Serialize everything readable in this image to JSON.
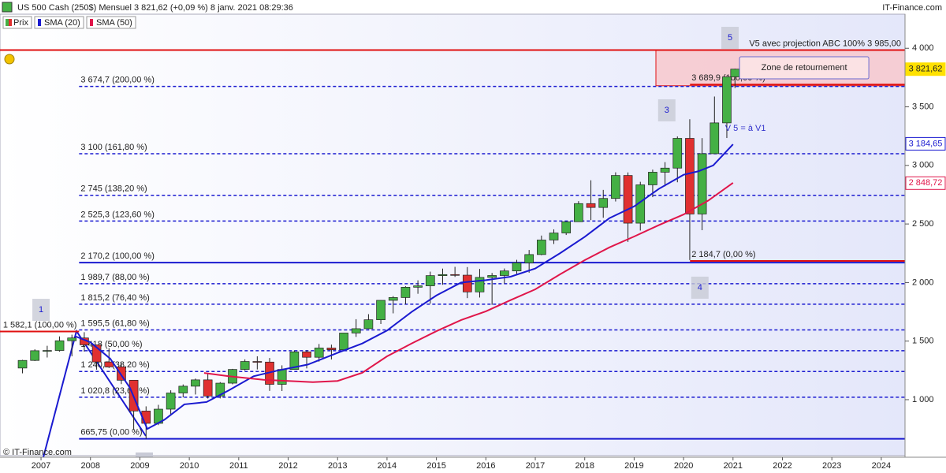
{
  "chart_data": {
    "type": "candlestick",
    "title": "US 500 Cash (250$) Mensuel 3 821,62 (+0,09 %) 8 janv. 2021 08:29:36",
    "source": "IT-Finance.com",
    "credit": "© IT-Finance.com",
    "price_name": "Prix",
    "up_color": "#44b044",
    "down_color": "#e03030",
    "x": [
      2006.625,
      2006.875,
      2007.125,
      2007.375,
      2007.625,
      2007.875,
      2008.125,
      2008.375,
      2008.625,
      2008.875,
      2009.125,
      2009.375,
      2009.625,
      2009.875,
      2010.125,
      2010.375,
      2010.625,
      2010.875,
      2011.125,
      2011.375,
      2011.625,
      2011.875,
      2012.125,
      2012.375,
      2012.625,
      2012.875,
      2013.125,
      2013.375,
      2013.625,
      2013.875,
      2014.125,
      2014.375,
      2014.625,
      2014.875,
      2015.125,
      2015.375,
      2015.625,
      2015.875,
      2016.125,
      2016.375,
      2016.625,
      2016.875,
      2017.125,
      2017.375,
      2017.625,
      2017.875,
      2018.125,
      2018.375,
      2018.625,
      2018.875,
      2019.125,
      2019.375,
      2019.625,
      2019.875,
      2020.125,
      2020.375,
      2020.625,
      2020.875,
      2021.04
    ],
    "open": [
      1270,
      1335,
      1418,
      1420,
      1503,
      1527,
      1468,
      1322,
      1280,
      1166,
      903,
      798,
      919,
      1057,
      1115,
      1169,
      1031,
      1141,
      1258,
      1326,
      1321,
      1131,
      1258,
      1408,
      1362,
      1441,
      1426,
      1569,
      1606,
      1682,
      1848,
      1872,
      1960,
      1972,
      2059,
      2068,
      2063,
      1920,
      2044,
      2060,
      2099,
      2168,
      2239,
      2363,
      2423,
      2519,
      2674,
      2641,
      2718,
      2914,
      2507,
      2834,
      2942,
      2977,
      3231,
      2585,
      3100,
      3363,
      3756
    ],
    "high": [
      1340,
      1430,
      1460,
      1540,
      1555,
      1576,
      1470,
      1440,
      1313,
      1167,
      943,
      956,
      1080,
      1130,
      1180,
      1220,
      1150,
      1263,
      1344,
      1370,
      1356,
      1293,
      1420,
      1422,
      1475,
      1470,
      1570,
      1687,
      1730,
      1849,
      1884,
      1968,
      2019,
      2093,
      2119,
      2134,
      2132,
      2116,
      2082,
      2120,
      2194,
      2278,
      2401,
      2454,
      2519,
      2695,
      2873,
      2791,
      2941,
      2940,
      2860,
      2964,
      3028,
      3247,
      3394,
      3233,
      3588,
      3760,
      3826
    ],
    "low": [
      1225,
      1330,
      1360,
      1410,
      1370,
      1410,
      1256,
      1270,
      1133,
      741,
      666,
      783,
      869,
      1020,
      1044,
      1010,
      1011,
      1131,
      1249,
      1258,
      1075,
      1074,
      1258,
      1267,
      1325,
      1343,
      1426,
      1536,
      1604,
      1646,
      1737,
      1814,
      1904,
      1820,
      1981,
      2048,
      1867,
      1872,
      1810,
      1992,
      2074,
      2084,
      2233,
      2329,
      2406,
      2520,
      2533,
      2553,
      2692,
      2347,
      2444,
      2729,
      2822,
      2856,
      2192,
      2447,
      3101,
      3234,
      3660
    ],
    "close": [
      1335,
      1418,
      1420,
      1503,
      1527,
      1468,
      1322,
      1280,
      1166,
      903,
      798,
      919,
      1057,
      1115,
      1169,
      1031,
      1141,
      1258,
      1326,
      1321,
      1131,
      1258,
      1408,
      1362,
      1441,
      1426,
      1569,
      1606,
      1682,
      1848,
      1872,
      1960,
      1972,
      2059,
      2068,
      2063,
      1920,
      2044,
      2060,
      2099,
      2168,
      2239,
      2363,
      2423,
      2519,
      2674,
      2641,
      2718,
      2914,
      2507,
      2834,
      2942,
      2977,
      3231,
      2585,
      3100,
      3363,
      3756,
      3822
    ],
    "series": [
      {
        "name": "SMA (20)",
        "color": "#1a1ad0",
        "x": [
          2007.7,
          2008.0,
          2008.4,
          2008.8,
          2009.15,
          2009.5,
          2009.9,
          2010.35,
          2010.8,
          2011.3,
          2011.8,
          2012.4,
          2013.0,
          2013.5,
          2014.0,
          2014.5,
          2015.0,
          2015.5,
          2016.0,
          2016.5,
          2017.0,
          2017.5,
          2018.0,
          2018.5,
          2019.0,
          2019.5,
          2020.0,
          2020.3,
          2020.6,
          2021.0
        ],
        "values": [
          1540,
          1490,
          1350,
          1100,
          750,
          830,
          960,
          980,
          1080,
          1200,
          1250,
          1300,
          1400,
          1480,
          1590,
          1750,
          1890,
          2000,
          2020,
          2050,
          2120,
          2250,
          2390,
          2550,
          2650,
          2800,
          2920,
          2950,
          3000,
          3180
        ]
      },
      {
        "name": "SMA (50)",
        "color": "#e0164a",
        "x": [
          2010.3,
          2010.8,
          2011.5,
          2012.0,
          2012.5,
          2013.0,
          2013.5,
          2014.0,
          2014.5,
          2015.0,
          2015.5,
          2016.0,
          2016.5,
          2017.0,
          2017.5,
          2018.0,
          2018.5,
          2019.0,
          2019.5,
          2020.0,
          2020.5,
          2021.0
        ],
        "values": [
          1228,
          1200,
          1170,
          1160,
          1150,
          1160,
          1230,
          1370,
          1480,
          1585,
          1680,
          1754,
          1850,
          1942,
          2070,
          2191,
          2300,
          2393,
          2490,
          2581,
          2700,
          2851
        ]
      }
    ],
    "price_tags": [
      {
        "value": 3821.62,
        "label": "3 821,62",
        "color": "#ffe100"
      },
      {
        "value": 3184.65,
        "label": "3 184,65",
        "color": "#1a1ad0"
      },
      {
        "value": 2848.72,
        "label": "2 848,72",
        "color": "#e0164a"
      }
    ],
    "levels": [
      {
        "value": 3985,
        "label": "V5 avec projection ABC 100% 3 985,00",
        "color": "#e01010",
        "dashed": false,
        "from": 2006.17,
        "label_x": 2024.4,
        "anchor": "end"
      },
      {
        "value": 3689.9,
        "label": "3 689,9 (100,00 %)",
        "color": "#e01010",
        "dashed": false,
        "from": 2020.13,
        "label_x": 2020.13
      },
      {
        "value": 3674.7,
        "label": "3 674,7 (200,00 %)",
        "color": "#1a1ad0",
        "dashed": true,
        "from": 2007.77,
        "label_x": 2007.77
      },
      {
        "value": 3100,
        "label": "3 100 (161,80 %)",
        "color": "#1a1ad0",
        "dashed": true,
        "from": 2007.77,
        "label_x": 2007.77
      },
      {
        "value": 2745,
        "label": "2 745 (138,20 %)",
        "color": "#1a1ad0",
        "dashed": true,
        "from": 2007.77,
        "label_x": 2007.77
      },
      {
        "value": 2525.3,
        "label": "2 525,3 (123,60 %)",
        "color": "#1a1ad0",
        "dashed": true,
        "from": 2007.77,
        "label_x": 2007.77
      },
      {
        "value": 2184.7,
        "label": "2 184,7 (0,00 %)",
        "color": "#e01010",
        "dashed": false,
        "from": 2020.13,
        "label_x": 2020.13
      },
      {
        "value": 2170.2,
        "label": "2 170,2 (100,00 %)",
        "color": "#1a1ad0",
        "dashed": false,
        "from": 2007.77,
        "label_x": 2007.77
      },
      {
        "value": 1989.7,
        "label": "1 989,7 (88,00 %)",
        "color": "#1a1ad0",
        "dashed": true,
        "from": 2007.77,
        "label_x": 2007.77
      },
      {
        "value": 1815.2,
        "label": "1 815,2 (76,40 %)",
        "color": "#1a1ad0",
        "dashed": true,
        "from": 2007.77,
        "label_x": 2007.77
      },
      {
        "value": 1595.5,
        "label": "1 595,5 (61,80 %)",
        "color": "#1a1ad0",
        "dashed": true,
        "from": 2007.77,
        "label_x": 2007.77
      },
      {
        "value": 1582.1,
        "label": "1 582,1 (100,00 %)",
        "color": "#e01010",
        "dashed": false,
        "from": 2006.17,
        "to": 2007.77,
        "label_x": 2006.2
      },
      {
        "value": 1418,
        "label": "1 418 (50,00 %)",
        "color": "#1a1ad0",
        "dashed": true,
        "from": 2007.77,
        "label_x": 2007.77
      },
      {
        "value": 1240.5,
        "label": "1 240,5 (38,20 %)",
        "color": "#1a1ad0",
        "dashed": true,
        "from": 2007.77,
        "label_x": 2007.77
      },
      {
        "value": 1020.8,
        "label": "1 020,8 (23,60 %)",
        "color": "#1a1ad0",
        "dashed": true,
        "from": 2007.77,
        "label_x": 2007.77
      },
      {
        "value": 665.75,
        "label": "665,75 (0,00 %)",
        "color": "#1a1ad0",
        "dashed": false,
        "from": 2007.77,
        "label_x": 2007.77
      }
    ],
    "zone": {
      "from": 2019.44,
      "low": 3680,
      "high": 3985,
      "label": "Zone de retournement",
      "label_x": 2022.44,
      "label_y": 3833
    },
    "waves": [
      {
        "label": "1",
        "x": 2007.0,
        "y": 1767
      },
      {
        "label": "3",
        "x": 2019.66,
        "y": 3470
      },
      {
        "label": "4",
        "x": 2020.33,
        "y": 1956
      },
      {
        "label": "5",
        "x": 2020.94,
        "y": 4089
      }
    ],
    "note": {
      "text": "V 5 = à V1",
      "x": 2020.84,
      "y": 3315
    },
    "xlim": [
      2006.17,
      2024.48
    ],
    "xticks": [
      2007,
      2008,
      2009,
      2010,
      2011,
      2012,
      2013,
      2014,
      2015,
      2016,
      2017,
      2018,
      2019,
      2020,
      2021,
      2022,
      2023,
      2024
    ],
    "ylim": [
      522,
      4291
    ],
    "yticks": [
      {
        "value": 1000,
        "label": "1 000"
      },
      {
        "value": 1500,
        "label": "1 500"
      },
      {
        "value": 2000,
        "label": "2 000"
      },
      {
        "value": 2500,
        "label": "2 500"
      },
      {
        "value": 3000,
        "label": "3 000"
      },
      {
        "value": 3500,
        "label": "3 500"
      },
      {
        "value": 4000,
        "label": "4 000"
      }
    ]
  }
}
